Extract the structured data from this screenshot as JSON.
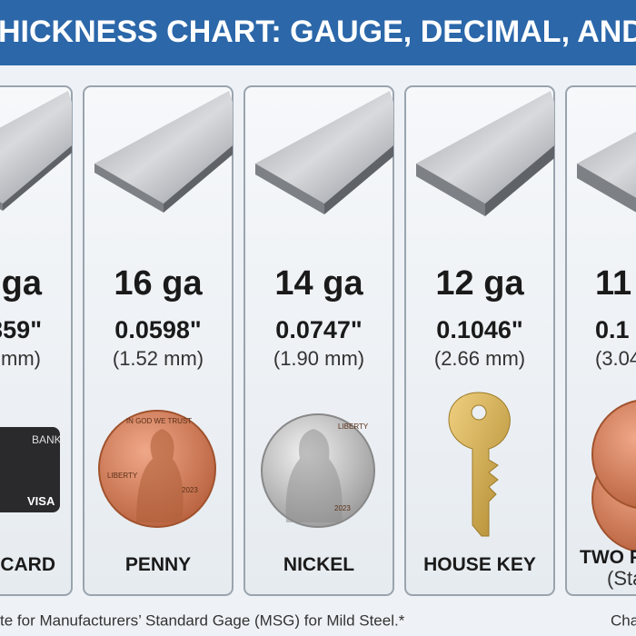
{
  "header": {
    "title": "HICKNESS CHART: GAUGE, DECIMAL, AND"
  },
  "cards": [
    {
      "gauge": "ga",
      "decimal": "359\"",
      "metric": "mm)",
      "object": "T CARD",
      "object_text": [
        "BANK",
        "VISA"
      ]
    },
    {
      "gauge": "16 ga",
      "decimal": "0.0598\"",
      "metric": "(1.52 mm)",
      "object": "PENNY",
      "object_text": [
        "IN GOD WE TRUST",
        "LIBERTY",
        "2023"
      ]
    },
    {
      "gauge": "14 ga",
      "decimal": "0.0747\"",
      "metric": "(1.90 mm)",
      "object": "NICKEL",
      "object_text": [
        "LIBERTY",
        "2023"
      ]
    },
    {
      "gauge": "12 ga",
      "decimal": "0.1046\"",
      "metric": "(2.66 mm)",
      "object": "HOUSE KEY"
    },
    {
      "gauge": "11",
      "decimal": "0.1",
      "metric": "(3.04",
      "object": "TWO P",
      "note": "(Sta"
    }
  ],
  "footer": {
    "note": "te for Manufacturers’ Standard Gage (MSG) for Mild Steel.*",
    "right": "Cha"
  }
}
